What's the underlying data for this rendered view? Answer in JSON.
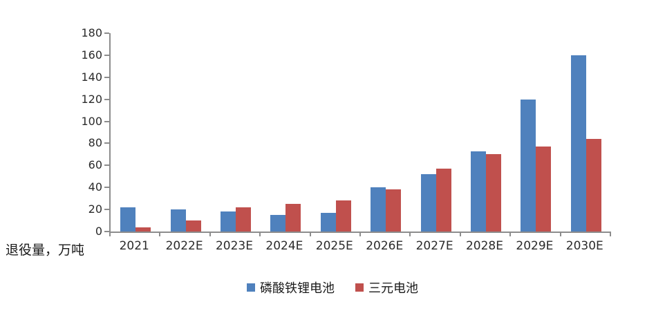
{
  "chart_data": {
    "type": "bar",
    "title": "",
    "ylabel": "退役量，万吨",
    "xlabel": "",
    "ylim": [
      0,
      180
    ],
    "ytick_step": 20,
    "grid": false,
    "legend_position": "bottom-center",
    "categories": [
      "2021",
      "2022E",
      "2023E",
      "2024E",
      "2025E",
      "2026E",
      "2027E",
      "2028E",
      "2029E",
      "2030E"
    ],
    "series": [
      {
        "name": "磷酸铁锂电池",
        "color": "#4F81BD",
        "values": [
          22,
          20,
          18,
          15,
          17,
          40,
          52,
          73,
          120,
          160
        ]
      },
      {
        "name": "三元电池",
        "color": "#C0504D",
        "values": [
          4,
          10,
          22,
          25,
          28,
          38,
          57,
          70,
          77,
          84
        ]
      }
    ],
    "axis_color": "#8c8c8c",
    "tick_label_color": "#2b2b2b"
  }
}
